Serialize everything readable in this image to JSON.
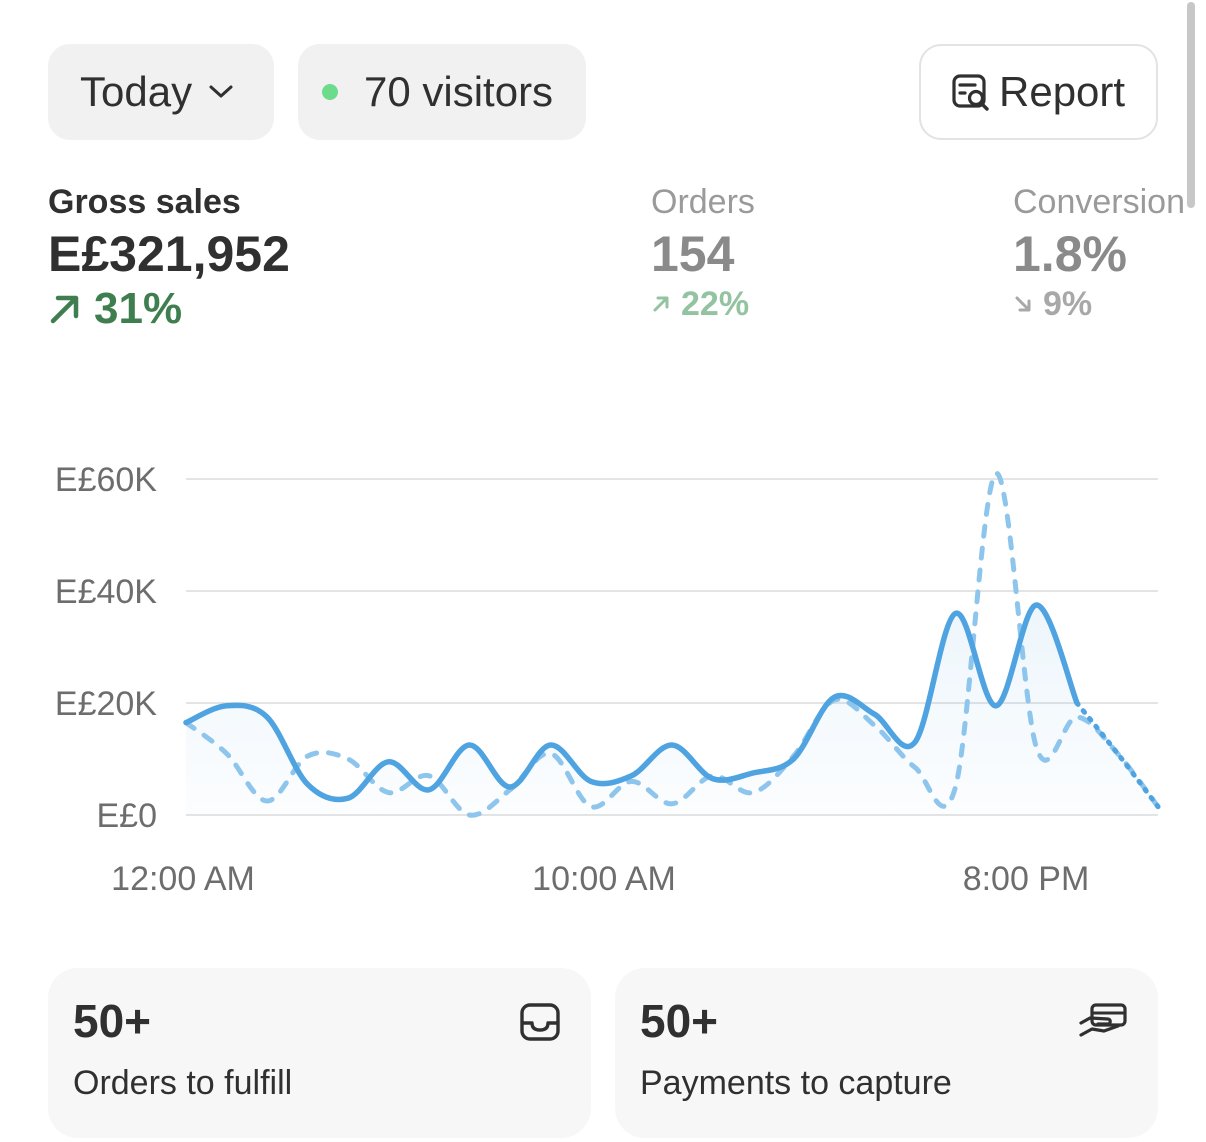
{
  "toolbar": {
    "date_label": "Today",
    "visitors_label": "70 visitors",
    "report_label": "Report"
  },
  "metrics": {
    "gross": {
      "label": "Gross sales",
      "value": "E£321,952",
      "delta": "31%",
      "trend": "up"
    },
    "orders": {
      "label": "Orders",
      "value": "154",
      "delta": "22%",
      "trend": "up"
    },
    "conversion": {
      "label": "Conversion",
      "value": "1.8%",
      "delta": "9%",
      "trend": "down"
    }
  },
  "chart_data": {
    "type": "line",
    "y_ticks": [
      "E£60K",
      "E£40K",
      "E£20K",
      "E£0"
    ],
    "y_tick_values": [
      60000,
      40000,
      20000,
      0
    ],
    "ylim": [
      0,
      60000
    ],
    "x_ticks": [
      "12:00 AM",
      "10:00 AM",
      "8:00 PM"
    ],
    "grid": true,
    "series": [
      {
        "style": "solid",
        "color": "#4fa3e0",
        "values": [
          16500,
          19500,
          17500,
          5500,
          3000,
          9500,
          4500,
          12500,
          5000,
          12500,
          6000,
          7000,
          12500,
          6500,
          7500,
          10000,
          21000,
          18000,
          13000,
          36000,
          19500,
          37500,
          20000,
          11000,
          1500
        ]
      },
      {
        "style": "dashed",
        "color": "#8ec5ec",
        "values": [
          16500,
          11000,
          2500,
          10500,
          10000,
          4000,
          7000,
          0,
          4500,
          11000,
          1500,
          6000,
          2000,
          7000,
          4000,
          10500,
          20500,
          16000,
          8500,
          5000,
          61000,
          12000,
          17500,
          11000,
          1500
        ]
      }
    ]
  },
  "cards": {
    "fulfill": {
      "count": "50+",
      "label": "Orders to fulfill",
      "icon": "inbox-icon"
    },
    "capture": {
      "count": "50+",
      "label": "Payments to capture",
      "icon": "hand-card-icon"
    }
  },
  "colors": {
    "positive": "#3f7e4e",
    "line": "#4fa3e0",
    "visitor_dot": "#6cdc8c"
  }
}
